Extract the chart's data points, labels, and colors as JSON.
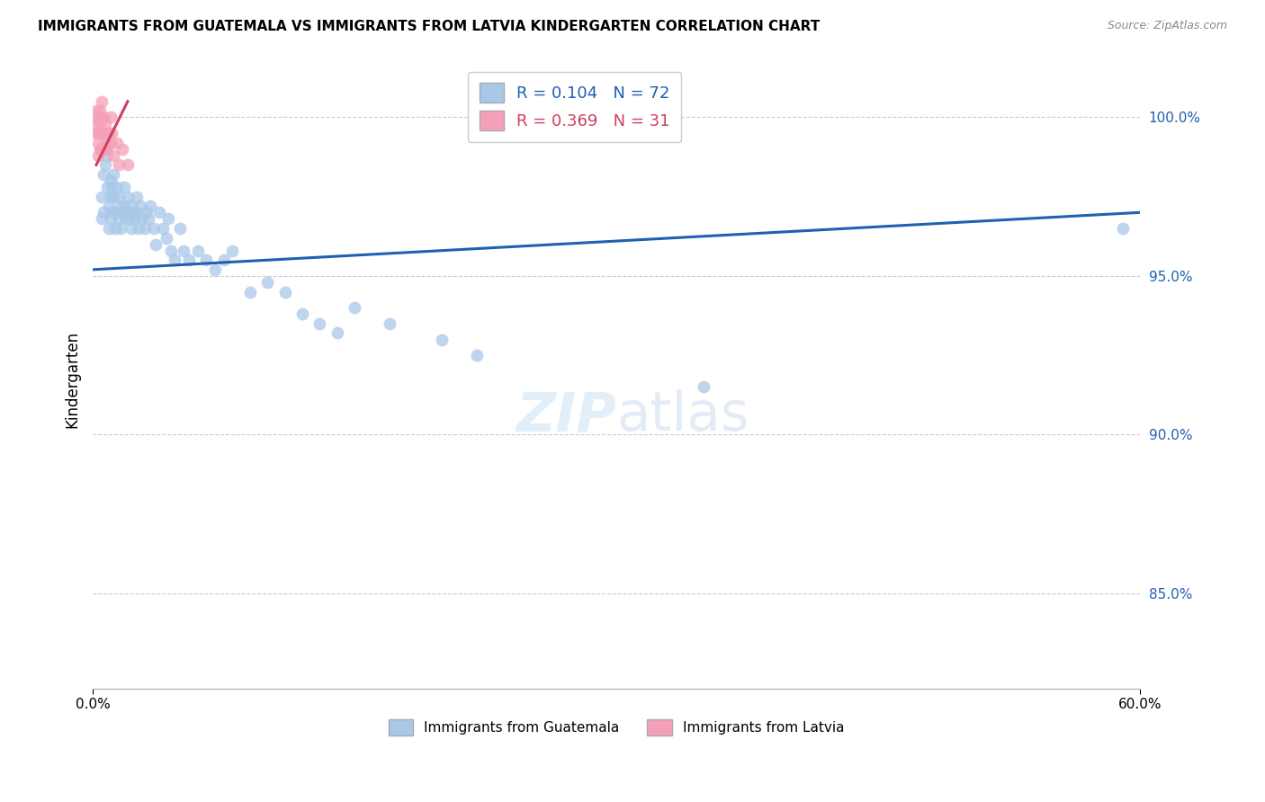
{
  "title": "IMMIGRANTS FROM GUATEMALA VS IMMIGRANTS FROM LATVIA KINDERGARTEN CORRELATION CHART",
  "source": "Source: ZipAtlas.com",
  "ylabel": "Kindergarten",
  "yticks": [
    100.0,
    95.0,
    90.0,
    85.0
  ],
  "ytick_labels": [
    "100.0%",
    "95.0%",
    "90.0%",
    "85.0%"
  ],
  "xlim": [
    0.0,
    0.6
  ],
  "ylim": [
    82.0,
    101.5
  ],
  "legend_blue_r": "0.104",
  "legend_blue_n": "72",
  "legend_pink_r": "0.369",
  "legend_pink_n": "31",
  "blue_color": "#a8c8e8",
  "blue_line_color": "#2060b0",
  "pink_color": "#f4a0b8",
  "pink_line_color": "#d04060",
  "watermark_zip": "ZIP",
  "watermark_atlas": "atlas",
  "guatemala_x": [
    0.005,
    0.005,
    0.006,
    0.006,
    0.007,
    0.007,
    0.008,
    0.008,
    0.009,
    0.009,
    0.01,
    0.01,
    0.01,
    0.011,
    0.011,
    0.012,
    0.012,
    0.013,
    0.013,
    0.014,
    0.015,
    0.015,
    0.016,
    0.016,
    0.017,
    0.018,
    0.018,
    0.019,
    0.02,
    0.02,
    0.021,
    0.022,
    0.022,
    0.023,
    0.024,
    0.025,
    0.025,
    0.026,
    0.027,
    0.028,
    0.03,
    0.031,
    0.032,
    0.033,
    0.035,
    0.036,
    0.038,
    0.04,
    0.042,
    0.043,
    0.045,
    0.047,
    0.05,
    0.052,
    0.055,
    0.06,
    0.065,
    0.07,
    0.075,
    0.08,
    0.09,
    0.1,
    0.11,
    0.12,
    0.13,
    0.14,
    0.15,
    0.17,
    0.2,
    0.22,
    0.35,
    0.59
  ],
  "guatemala_y": [
    97.5,
    96.8,
    98.2,
    97.0,
    99.0,
    98.5,
    98.8,
    97.8,
    97.2,
    96.5,
    98.0,
    97.5,
    96.8,
    97.8,
    97.0,
    98.2,
    97.5,
    97.0,
    96.5,
    97.8,
    97.5,
    96.8,
    97.2,
    96.5,
    97.0,
    97.8,
    97.2,
    96.8,
    97.5,
    97.0,
    96.8,
    97.2,
    96.5,
    97.0,
    96.8,
    97.5,
    97.0,
    96.5,
    97.2,
    96.8,
    96.5,
    97.0,
    96.8,
    97.2,
    96.5,
    96.0,
    97.0,
    96.5,
    96.2,
    96.8,
    95.8,
    95.5,
    96.5,
    95.8,
    95.5,
    95.8,
    95.5,
    95.2,
    95.5,
    95.8,
    94.5,
    94.8,
    94.5,
    93.8,
    93.5,
    93.2,
    94.0,
    93.5,
    93.0,
    92.5,
    91.5,
    96.5
  ],
  "latvia_x": [
    0.002,
    0.002,
    0.002,
    0.003,
    0.003,
    0.003,
    0.003,
    0.004,
    0.004,
    0.004,
    0.004,
    0.005,
    0.005,
    0.005,
    0.005,
    0.006,
    0.006,
    0.006,
    0.007,
    0.007,
    0.008,
    0.008,
    0.009,
    0.01,
    0.01,
    0.011,
    0.012,
    0.014,
    0.015,
    0.017,
    0.02
  ],
  "latvia_y": [
    100.2,
    99.8,
    99.5,
    100.0,
    99.5,
    99.2,
    98.8,
    100.2,
    99.8,
    99.5,
    99.0,
    100.5,
    100.0,
    99.5,
    99.0,
    100.0,
    99.5,
    99.0,
    99.8,
    99.2,
    99.5,
    99.0,
    99.5,
    100.0,
    99.2,
    99.5,
    98.8,
    99.2,
    98.5,
    99.0,
    98.5
  ],
  "blue_trendline_x": [
    0.0,
    0.6
  ],
  "blue_trendline_y": [
    95.2,
    97.0
  ],
  "pink_trendline_x": [
    0.002,
    0.02
  ],
  "pink_trendline_y": [
    98.5,
    100.5
  ],
  "xtick_positions": [
    0.0,
    0.6
  ],
  "xtick_labels": [
    "0.0%",
    "60.0%"
  ]
}
